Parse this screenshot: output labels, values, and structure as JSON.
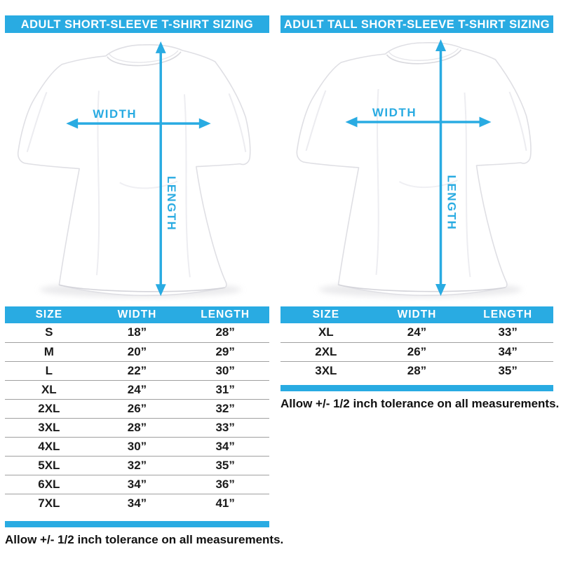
{
  "page": {
    "accent_blue": "#29abe2",
    "text_color": "#1b1b1b",
    "divider_gray": "#a0a0a0",
    "shirt_outline": "#dfdfe4"
  },
  "panels": [
    {
      "title": "ADULT SHORT-SLEEVE T-SHIRT SIZING",
      "diagram": {
        "width_label": "WIDTH",
        "length_label": "LENGTH"
      },
      "table": {
        "columns": [
          "SIZE",
          "WIDTH",
          "LENGTH"
        ],
        "rows": [
          {
            "size": "S",
            "width": "18”",
            "length": "28”"
          },
          {
            "size": "M",
            "width": "20”",
            "length": "29”"
          },
          {
            "size": "L",
            "width": "22”",
            "length": "30”"
          },
          {
            "size": "XL",
            "width": "24”",
            "length": "31”"
          },
          {
            "size": "2XL",
            "width": "26”",
            "length": "32”"
          },
          {
            "size": "3XL",
            "width": "28”",
            "length": "33”"
          },
          {
            "size": "4XL",
            "width": "30”",
            "length": "34”"
          },
          {
            "size": "5XL",
            "width": "32”",
            "length": "35”"
          },
          {
            "size": "6XL",
            "width": "34”",
            "length": "36”"
          },
          {
            "size": "7XL",
            "width": "34”",
            "length": "41”"
          }
        ]
      },
      "tolerance_note": "Allow +/- 1/2 inch tolerance on all measurements."
    },
    {
      "title": "ADULT TALL SHORT-SLEEVE T-SHIRT SIZING",
      "diagram": {
        "width_label": "WIDTH",
        "length_label": "LENGTH"
      },
      "table": {
        "columns": [
          "SIZE",
          "WIDTH",
          "LENGTH"
        ],
        "rows": [
          {
            "size": "XL",
            "width": "24”",
            "length": "33”"
          },
          {
            "size": "2XL",
            "width": "26”",
            "length": "34”"
          },
          {
            "size": "3XL",
            "width": "28”",
            "length": "35”"
          }
        ]
      },
      "tolerance_note": "Allow +/- 1/2 inch tolerance on all measurements."
    }
  ]
}
